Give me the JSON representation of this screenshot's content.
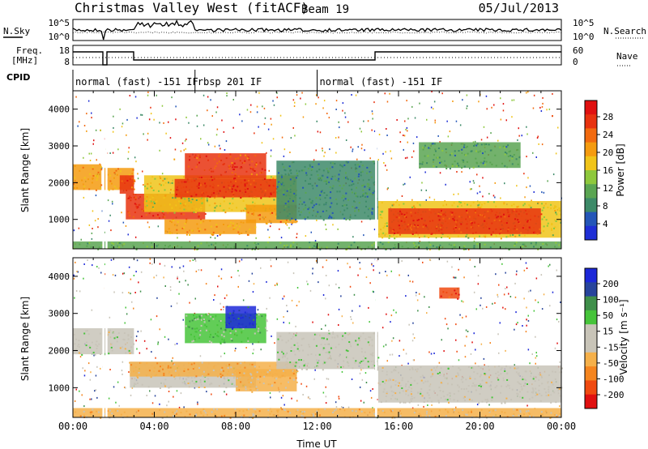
{
  "header": {
    "title": "Christmas Valley West (fitACF)",
    "beam": "Beam 19",
    "date": "05/Jul/2013"
  },
  "top_panels": {
    "nsky_label": "N.Sky",
    "nsearch_label": "N.Search",
    "nsky_ticks": [
      "10^5",
      "10^0"
    ],
    "nsearch_ticks": [
      "10^5",
      "10^0"
    ],
    "freq_label_1": "Freq.",
    "freq_label_2": "[MHz]",
    "freq_ticks": [
      "18",
      "8"
    ],
    "nave_label": "Nave",
    "nave_ticks": [
      "60",
      "0"
    ],
    "cpid_label": "CPID",
    "cpid_segments": [
      {
        "label": "normal (fast) -151 IF",
        "start_h": 0,
        "end_h": 6
      },
      {
        "label": "rbsp 201 IF",
        "start_h": 6,
        "end_h": 12
      },
      {
        "label": "normal (fast) -151 IF",
        "start_h": 12,
        "end_h": 24
      }
    ]
  },
  "colors": {
    "power_scale": [
      "#1f2fd6",
      "#2456b8",
      "#3d8a68",
      "#5aa552",
      "#8ec83c",
      "#f0c419",
      "#f59b0f",
      "#f26a0f",
      "#e8320f",
      "#e01010"
    ],
    "velocity_scale": [
      "#e01010",
      "#f04a10",
      "#f5851f",
      "#f5b04a",
      "#c8c4b8",
      "#c8c4b8",
      "#46c43a",
      "#3f8f4a",
      "#27449c",
      "#1c28d8"
    ]
  },
  "power_colorbar": {
    "label": "Power [dB]",
    "ticks": [
      "28",
      "24",
      "20",
      "16",
      "12",
      "8",
      "4"
    ]
  },
  "velocity_colorbar": {
    "label": "Velocity [m s⁻¹]",
    "ticks": [
      "200",
      "100",
      "50",
      "15",
      "-15",
      "-50",
      "-100",
      "-200"
    ]
  },
  "chart_data": [
    {
      "type": "heatmap",
      "title": "",
      "ylabel": "Slant Range [km]",
      "xlabel": "",
      "xlim": [
        0,
        24
      ],
      "ylim": [
        200,
        4500
      ],
      "y_ticks": [
        1000,
        2000,
        3000,
        4000
      ],
      "value_label": "Power [dB]",
      "value_range": [
        0,
        32
      ],
      "regions": [
        {
          "t0": 0.0,
          "t1": 1.4,
          "r0": 1800,
          "r1": 2500,
          "value": 20
        },
        {
          "t0": 1.5,
          "t1": 3.0,
          "r0": 1800,
          "r1": 2400,
          "value": 20
        },
        {
          "t0": 2.3,
          "t1": 3.0,
          "r0": 1700,
          "r1": 2200,
          "value": 26
        },
        {
          "t0": 2.6,
          "t1": 6.5,
          "r0": 1000,
          "r1": 1700,
          "value": 27
        },
        {
          "t0": 3.5,
          "t1": 11.0,
          "r0": 1200,
          "r1": 2200,
          "value": 16
        },
        {
          "t0": 5.0,
          "t1": 10.0,
          "r0": 1600,
          "r1": 2100,
          "value": 28
        },
        {
          "t0": 5.5,
          "t1": 9.5,
          "r0": 2100,
          "r1": 2800,
          "value": 26
        },
        {
          "t0": 4.5,
          "t1": 9.0,
          "r0": 600,
          "r1": 1000,
          "value": 20
        },
        {
          "t0": 8.5,
          "t1": 11.0,
          "r0": 900,
          "r1": 1400,
          "value": 22
        },
        {
          "t0": 10.0,
          "t1": 15.0,
          "r0": 1000,
          "r1": 2600,
          "value": 8
        },
        {
          "t0": 15.0,
          "t1": 24.0,
          "r0": 500,
          "r1": 1500,
          "value": 16
        },
        {
          "t0": 15.5,
          "t1": 23.0,
          "r0": 600,
          "r1": 1300,
          "value": 27
        },
        {
          "t0": 17.0,
          "t1": 22.0,
          "r0": 2400,
          "r1": 3100,
          "value": 10
        },
        {
          "t0": 0.0,
          "t1": 24.0,
          "r0": 200,
          "r1": 400,
          "value": 12
        }
      ]
    },
    {
      "type": "heatmap",
      "title": "",
      "ylabel": "Slant Range [km]",
      "xlabel": "Time UT",
      "xlim": [
        0,
        24
      ],
      "ylim": [
        200,
        4500
      ],
      "y_ticks": [
        1000,
        2000,
        3000,
        4000
      ],
      "x_ticks": [
        "00:00",
        "04:00",
        "08:00",
        "12:00",
        "16:00",
        "20:00",
        "00:00"
      ],
      "value_label": "Velocity [m s⁻¹]",
      "value_range": [
        -250,
        250
      ],
      "regions": [
        {
          "t0": 0.0,
          "t1": 3.0,
          "r0": 1900,
          "r1": 2600,
          "value": 0
        },
        {
          "t0": 2.8,
          "t1": 9.0,
          "r0": 1000,
          "r1": 1700,
          "value": 0
        },
        {
          "t0": 2.8,
          "t1": 11.0,
          "r0": 1300,
          "r1": 1700,
          "value": -80
        },
        {
          "t0": 5.5,
          "t1": 9.5,
          "r0": 2200,
          "r1": 3000,
          "value": 60
        },
        {
          "t0": 7.5,
          "t1": 9.0,
          "r0": 2600,
          "r1": 3200,
          "value": 200
        },
        {
          "t0": 8.0,
          "t1": 11.0,
          "r0": 900,
          "r1": 1500,
          "value": -60
        },
        {
          "t0": 10.0,
          "t1": 15.0,
          "r0": 1500,
          "r1": 2500,
          "value": 30
        },
        {
          "t0": 15.0,
          "t1": 24.0,
          "r0": 600,
          "r1": 1600,
          "value": 0
        },
        {
          "t0": 18.0,
          "t1": 19.0,
          "r0": 3400,
          "r1": 3700,
          "value": -200
        },
        {
          "t0": 0.0,
          "t1": 24.0,
          "r0": 200,
          "r1": 450,
          "value": -60
        }
      ]
    }
  ]
}
